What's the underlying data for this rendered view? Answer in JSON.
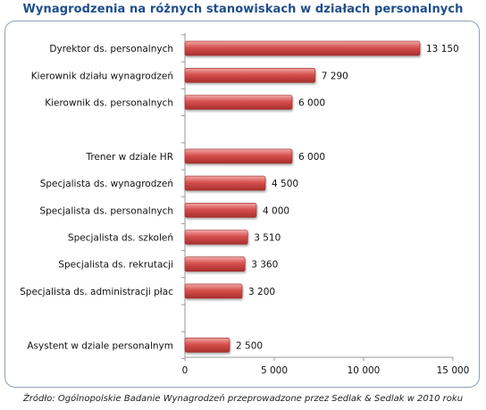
{
  "colors": {
    "title": "#1f4e8c",
    "bar_light": "#f1a9a7",
    "bar_mid": "#d6504d",
    "bar_dark": "#a82f2d",
    "frame": "#8f9fb3"
  },
  "chart_data": {
    "type": "bar",
    "orientation": "horizontal",
    "title": "Wynagrodzenia na różnych stanowiskach w działach personalnych",
    "categories": [
      "Dyrektor ds. personalnych",
      "Kierownik działu wynagrodzeń",
      "Kierownik ds. personalnych",
      "",
      "Trener w dziale HR",
      "Specjalista ds. wynagrodzeń",
      "Specjalista ds. personalnych",
      "Specjalista ds. szkoleń",
      "Specjalista ds. rekrutacji",
      "Specjalista ds. administracji płac",
      "",
      "Asystent w dziale personalnym"
    ],
    "values": [
      13150,
      7290,
      6000,
      null,
      6000,
      4500,
      4000,
      3510,
      3360,
      3200,
      null,
      2500
    ],
    "value_labels": [
      "13 150",
      "7 290",
      "6 000",
      "",
      "6 000",
      "4 500",
      "4 000",
      "3 510",
      "3 360",
      "3 200",
      "",
      "2 500"
    ],
    "xlim": [
      0,
      15000
    ],
    "xticks": [
      0,
      5000,
      10000,
      15000
    ],
    "xtick_labels": [
      "0",
      "5 000",
      "10 000",
      "15 000"
    ],
    "grid": false,
    "legend": "none"
  },
  "source_note": "Źródło: Ogólnopolskie Badanie Wynagrodzeń przeprowadzone przez Sedlak & Sedlak w 2010 roku"
}
